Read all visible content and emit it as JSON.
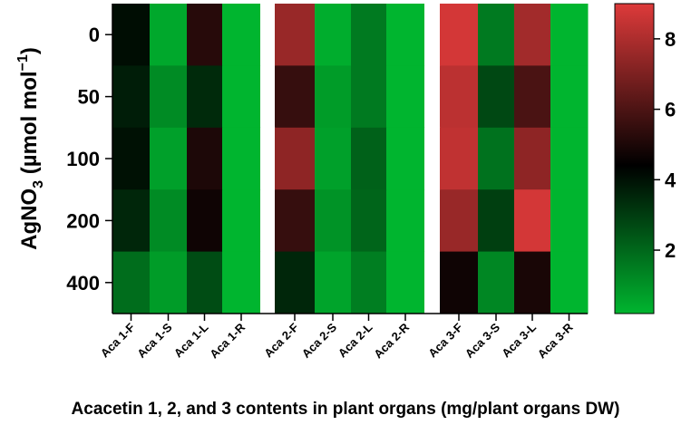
{
  "chart_data": {
    "type": "heatmap",
    "title": "",
    "xlabel": "Acacetin 1, 2, and 3 contents in plant organs (mg/plant organs DW)",
    "ylabel_main": "AgNO",
    "ylabel_sub": "3",
    "ylabel_unit": " (µmol mol",
    "ylabel_sup": "−1",
    "ylabel_close": ")",
    "rows": [
      "0",
      "50",
      "100",
      "200",
      "400"
    ],
    "columns": [
      "Aca 1-F",
      "Aca 1-S",
      "Aca 1-L",
      "Aca 1-R",
      "",
      "Aca 2-F",
      "Aca 2-S",
      "Aca 2-L",
      "Aca 2-R",
      "",
      "Aca 3-F",
      "Aca 3-S",
      "Aca 3-L",
      "Aca 3-R"
    ],
    "values": [
      [
        4.2,
        0.5,
        5.3,
        0.2,
        null,
        7.6,
        0.4,
        1.6,
        0.2,
        null,
        8.8,
        1.6,
        7.8,
        0.2
      ],
      [
        3.8,
        1.2,
        3.5,
        0.2,
        null,
        5.6,
        0.8,
        1.6,
        0.2,
        null,
        8.3,
        2.8,
        6.0,
        0.2
      ],
      [
        4.1,
        0.7,
        5.1,
        0.2,
        null,
        7.4,
        0.7,
        2.2,
        0.2,
        null,
        8.4,
        1.8,
        7.4,
        0.2
      ],
      [
        3.6,
        1.2,
        4.8,
        0.2,
        null,
        5.6,
        1.0,
        2.1,
        0.2,
        null,
        7.6,
        3.0,
        8.8,
        0.2
      ],
      [
        1.9,
        0.8,
        2.7,
        0.2,
        null,
        3.6,
        0.6,
        1.5,
        0.2,
        null,
        4.8,
        1.3,
        5.0,
        0.2
      ]
    ],
    "color_scale": {
      "min": 0.2,
      "mid": 4.5,
      "max": 9.0,
      "low_color": "#00b52f",
      "mid_color": "#000000",
      "high_color": "#dd3a3a",
      "ticks": [
        2,
        4,
        6,
        8
      ]
    },
    "gap_color": "#ffffff"
  }
}
